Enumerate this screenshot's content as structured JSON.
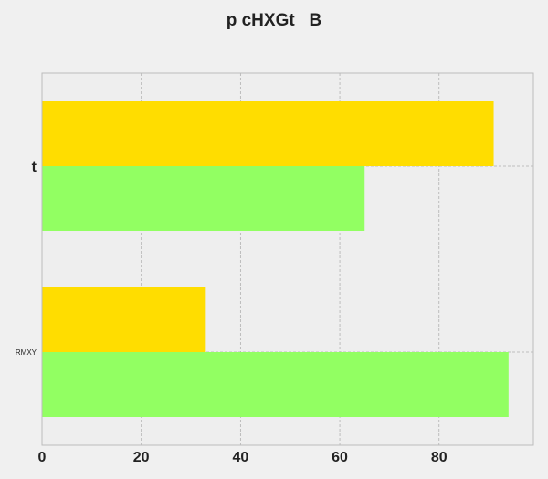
{
  "chart_data": {
    "type": "bar",
    "orientation": "horizontal",
    "title": "p cHXGt   B",
    "xlabel": "",
    "ylabel": "",
    "categories": [
      "t",
      "RMXY"
    ],
    "series": [
      {
        "values": [
          91,
          33
        ],
        "color": "#ffdd00"
      },
      {
        "values": [
          65,
          94
        ],
        "color": "#92ff62"
      }
    ],
    "xlim": [
      0,
      99
    ],
    "xticks": [
      0,
      20,
      40,
      60,
      80
    ],
    "grid": true,
    "legend": "none"
  }
}
